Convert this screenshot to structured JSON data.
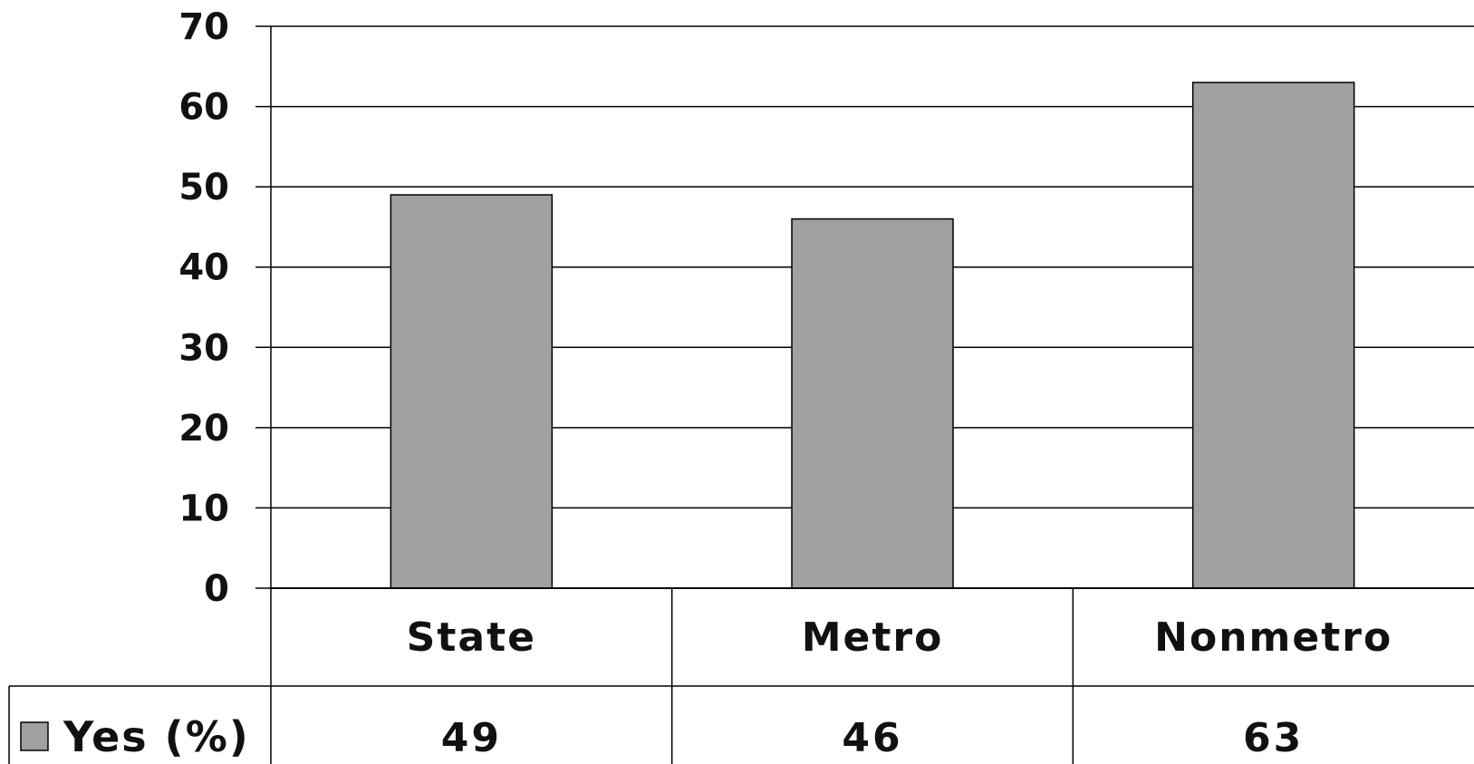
{
  "chart_data": {
    "type": "bar",
    "categories": [
      "State",
      "Metro",
      "Nonmetro"
    ],
    "series": [
      {
        "name": "Yes (%)",
        "values": [
          49,
          46,
          63
        ]
      }
    ],
    "title": "",
    "xlabel": "",
    "ylabel": "",
    "ylim": [
      0,
      70
    ],
    "yticks": [
      "0",
      "10",
      "20",
      "30",
      "40",
      "50",
      "60",
      "70"
    ],
    "grid": true,
    "legend": "data-table",
    "data_table": true
  },
  "colors": {
    "bar": "#a0a0a0",
    "bar_stroke": "#000000",
    "grid": "#000000",
    "background": "#ffffff"
  }
}
